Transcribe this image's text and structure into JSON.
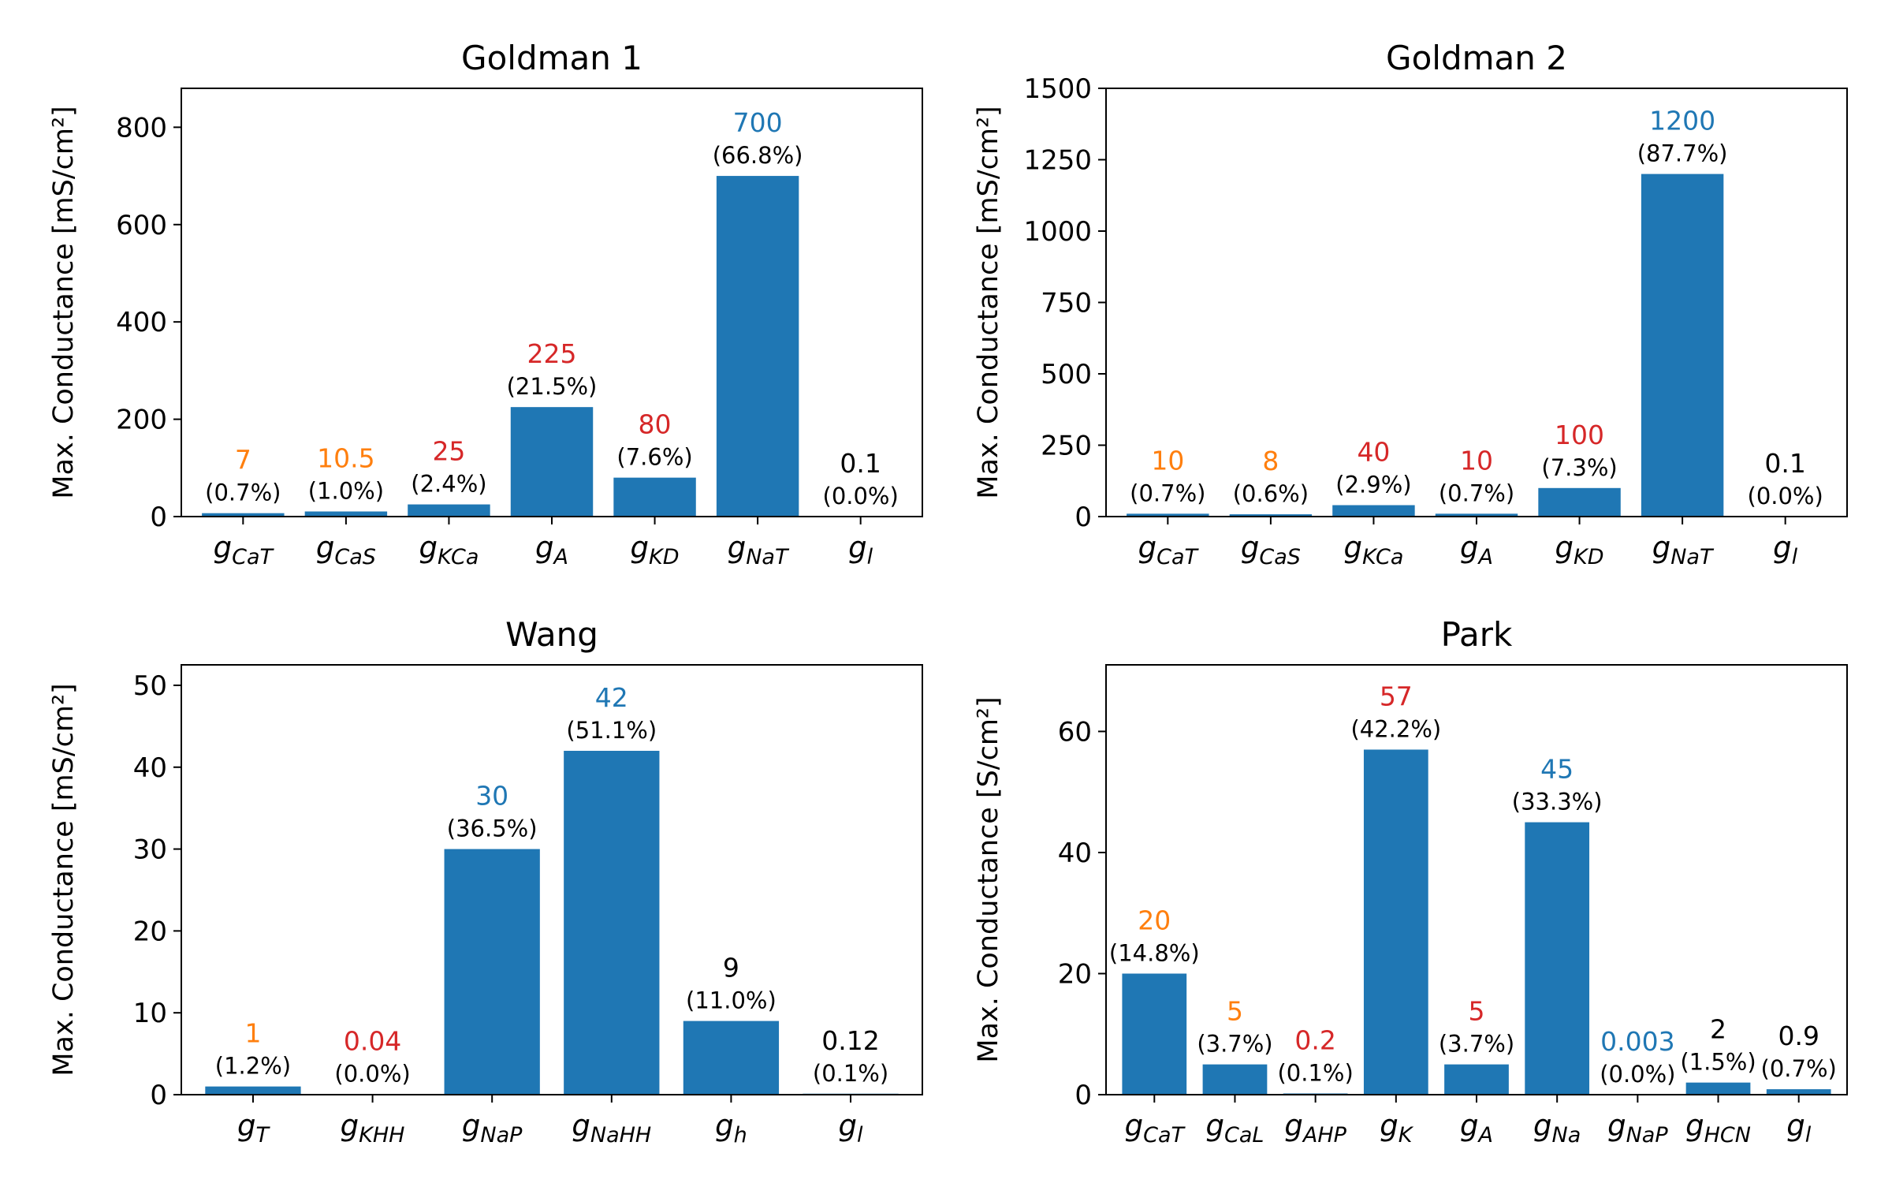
{
  "colors": {
    "bar": "#1f77b4",
    "orange": "#ff7f0e",
    "red": "#d62728",
    "blue": "#1f77b4",
    "black": "#000000"
  },
  "chart_data": [
    {
      "type": "bar",
      "title": "Goldman 1",
      "ylabel": "Max. Conductance [mS/cm²]",
      "ylim": [
        0,
        880
      ],
      "yticks": [
        0,
        200,
        400,
        600,
        800
      ],
      "grid": false,
      "categories": [
        {
          "base": "g",
          "sub": "CaT"
        },
        {
          "base": "g",
          "sub": "CaS"
        },
        {
          "base": "g",
          "sub": "KCa"
        },
        {
          "base": "g",
          "sub": "A"
        },
        {
          "base": "g",
          "sub": "KD"
        },
        {
          "base": "g",
          "sub": "NaT"
        },
        {
          "base": "g",
          "sub": "l"
        }
      ],
      "values": [
        7,
        10.5,
        25,
        225,
        80,
        700,
        0.1
      ],
      "value_labels": [
        "7",
        "10.5",
        "25",
        "225",
        "80",
        "700",
        "0.1"
      ],
      "percent_labels": [
        "(0.7%)",
        "(1.0%)",
        "(2.4%)",
        "(21.5%)",
        "(7.6%)",
        "(66.8%)",
        "(0.0%)"
      ],
      "label_colors": [
        "orange",
        "orange",
        "red",
        "red",
        "red",
        "blue",
        "black"
      ]
    },
    {
      "type": "bar",
      "title": "Goldman 2",
      "ylabel": "Max. Conductance [mS/cm²]",
      "ylim": [
        0,
        1500
      ],
      "yticks": [
        0,
        250,
        500,
        750,
        1000,
        1250,
        1500
      ],
      "grid": false,
      "categories": [
        {
          "base": "g",
          "sub": "CaT"
        },
        {
          "base": "g",
          "sub": "CaS"
        },
        {
          "base": "g",
          "sub": "KCa"
        },
        {
          "base": "g",
          "sub": "A"
        },
        {
          "base": "g",
          "sub": "KD"
        },
        {
          "base": "g",
          "sub": "NaT"
        },
        {
          "base": "g",
          "sub": "l"
        }
      ],
      "values": [
        10,
        8,
        40,
        10,
        100,
        1200,
        0.1
      ],
      "value_labels": [
        "10",
        "8",
        "40",
        "10",
        "100",
        "1200",
        "0.1"
      ],
      "percent_labels": [
        "(0.7%)",
        "(0.6%)",
        "(2.9%)",
        "(0.7%)",
        "(7.3%)",
        "(87.7%)",
        "(0.0%)"
      ],
      "label_colors": [
        "orange",
        "orange",
        "red",
        "red",
        "red",
        "blue",
        "black"
      ]
    },
    {
      "type": "bar",
      "title": "Wang",
      "ylabel": "Max. Conductance [mS/cm²]",
      "ylim": [
        0,
        52.5
      ],
      "yticks": [
        0,
        10,
        20,
        30,
        40,
        50
      ],
      "grid": false,
      "categories": [
        {
          "base": "g",
          "sub": "T"
        },
        {
          "base": "g",
          "sub": "KHH"
        },
        {
          "base": "g",
          "sub": "NaP"
        },
        {
          "base": "g",
          "sub": "NaHH"
        },
        {
          "base": "g",
          "sub": "h"
        },
        {
          "base": "g",
          "sub": "l"
        }
      ],
      "values": [
        1,
        0.04,
        30,
        42,
        9,
        0.12
      ],
      "value_labels": [
        "1",
        "0.04",
        "30",
        "42",
        "9",
        "0.12"
      ],
      "percent_labels": [
        "(1.2%)",
        "(0.0%)",
        "(36.5%)",
        "(51.1%)",
        "(11.0%)",
        "(0.1%)"
      ],
      "label_colors": [
        "orange",
        "red",
        "blue",
        "blue",
        "black",
        "black"
      ]
    },
    {
      "type": "bar",
      "title": "Park",
      "ylabel": "Max. Conductance [S/cm²]",
      "ylim": [
        0,
        71
      ],
      "yticks": [
        0,
        20,
        40,
        60
      ],
      "grid": false,
      "categories": [
        {
          "base": "g",
          "sub": "CaT"
        },
        {
          "base": "g",
          "sub": "CaL"
        },
        {
          "base": "g",
          "sub": "AHP"
        },
        {
          "base": "g",
          "sub": "K"
        },
        {
          "base": "g",
          "sub": "A"
        },
        {
          "base": "g",
          "sub": "Na"
        },
        {
          "base": "g",
          "sub": "NaP"
        },
        {
          "base": "g",
          "sub": "HCN"
        },
        {
          "base": "g",
          "sub": "l"
        }
      ],
      "values": [
        20,
        5,
        0.2,
        57,
        5,
        45,
        0.003,
        2,
        0.9
      ],
      "value_labels": [
        "20",
        "5",
        "0.2",
        "57",
        "5",
        "45",
        "0.003",
        "2",
        "0.9"
      ],
      "percent_labels": [
        "(14.8%)",
        "(3.7%)",
        "(0.1%)",
        "(42.2%)",
        "(3.7%)",
        "(33.3%)",
        "(0.0%)",
        "(1.5%)",
        "(0.7%)"
      ],
      "label_colors": [
        "orange",
        "orange",
        "red",
        "red",
        "red",
        "blue",
        "blue",
        "black",
        "black"
      ]
    }
  ]
}
